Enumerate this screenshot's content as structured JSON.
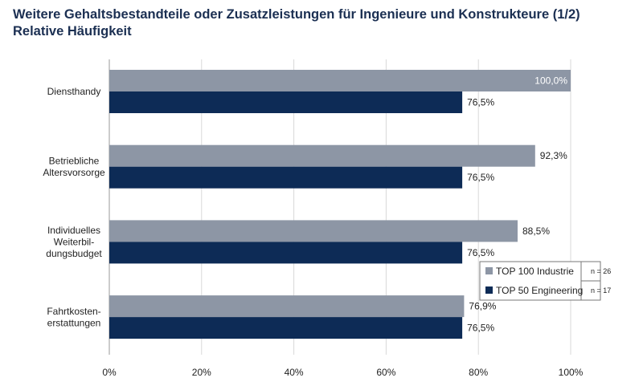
{
  "chart_data": {
    "type": "bar",
    "orientation": "horizontal",
    "title": "Weitere Gehaltsbestandteile oder Zusatzleistungen für Ingenieure und Konstrukteure (1/2)",
    "subtitle": "Relative Häufigkeit",
    "categories": [
      [
        "Diensthandy"
      ],
      [
        "Betriebliche",
        "Altersvorsorge"
      ],
      [
        "Individuelles",
        "Weiterbil-",
        "dungsbudget"
      ],
      [
        "Fahrtkosten-",
        "erstattungen"
      ]
    ],
    "series": [
      {
        "name": "TOP 100 Industrie",
        "n": "n = 26",
        "color": "#8d96a5",
        "values": [
          100.0,
          92.3,
          88.5,
          76.9
        ],
        "labels": [
          "100,0%",
          "92,3%",
          "88,5%",
          "76,9%"
        ]
      },
      {
        "name": "TOP 50 Engineering",
        "n": "n = 17",
        "color": "#0d2b56",
        "values": [
          76.5,
          76.5,
          76.5,
          76.5
        ],
        "labels": [
          "76,5%",
          "76,5%",
          "76,5%",
          "76,5%"
        ]
      }
    ],
    "xlim": [
      0,
      100
    ],
    "xticks": [
      "0%",
      "20%",
      "40%",
      "60%",
      "80%",
      "100%"
    ],
    "grid": true,
    "legend": "bottom-right"
  }
}
